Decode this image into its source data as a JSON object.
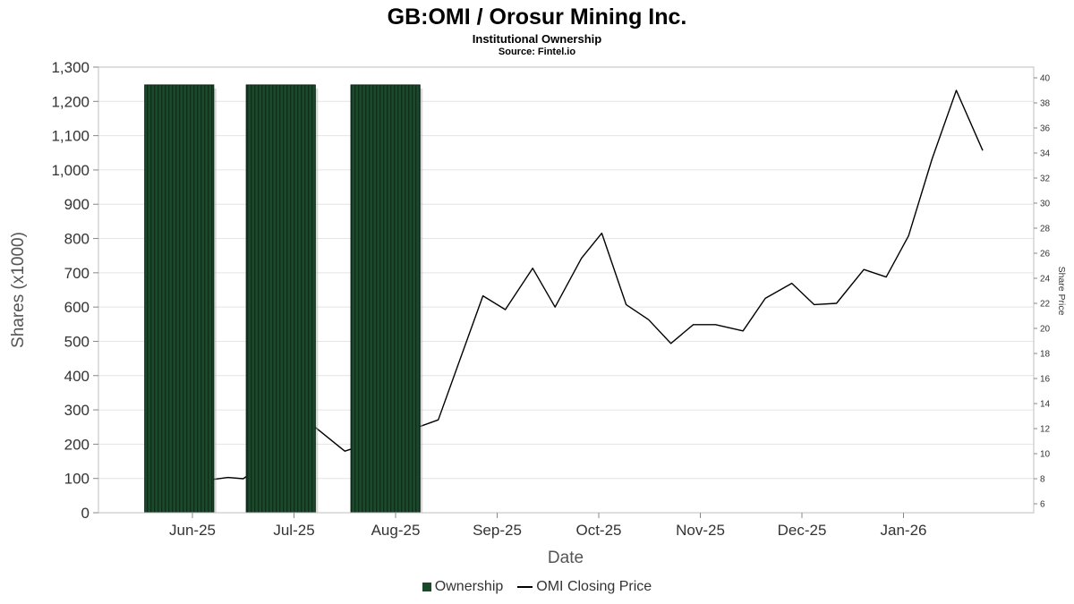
{
  "chart_data": {
    "type": "mixed",
    "title": "GB:OMI / Orosur Mining Inc.",
    "subtitle": "Institutional Ownership",
    "source": "Source: Fintel.io",
    "xlabel": "Date",
    "ylabel_left": "Shares (x1000)",
    "ylabel_right": "Share Price",
    "x_tick_labels": [
      "Jun-25",
      "Jul-25",
      "Aug-25",
      "Sep-25",
      "Oct-25",
      "Nov-25",
      "Dec-25",
      "Jan-26"
    ],
    "left_axis": {
      "min": 0,
      "max": 1300,
      "step": 100
    },
    "right_axis": {
      "min": 6,
      "max": 40,
      "step": 2
    },
    "grid": "horizontal",
    "legend_position": "bottom",
    "colors": {
      "bar_fill": "#1b4a2b",
      "bar_hatch": "#0d2e19",
      "line": "#000000",
      "gridline": "#e4e4e4",
      "plot_border": "#bfbfbf"
    },
    "series": [
      {
        "name": "Ownership",
        "type": "bar",
        "axis": "left",
        "color": "#1b4a2b",
        "bar_width_months": 0.68,
        "points": [
          {
            "month": "Jun-25",
            "t": -0.13,
            "shares_k": 1248
          },
          {
            "month": "Jul-25",
            "t": 0.87,
            "shares_k": 1248
          },
          {
            "month": "Aug-25",
            "t": 1.9,
            "shares_k": 1248
          }
        ]
      },
      {
        "name": "OMI Closing Price",
        "type": "line",
        "axis": "right",
        "color": "#000000",
        "points": [
          [
            0.16,
            7.9
          ],
          [
            0.35,
            8.1
          ],
          [
            0.5,
            8.0
          ],
          [
            1.21,
            12.1
          ],
          [
            1.5,
            10.2
          ],
          [
            2.25,
            12.2
          ],
          [
            2.42,
            12.7
          ],
          [
            2.86,
            22.6
          ],
          [
            3.08,
            21.5
          ],
          [
            3.35,
            24.8
          ],
          [
            3.57,
            21.7
          ],
          [
            3.83,
            25.6
          ],
          [
            4.03,
            27.6
          ],
          [
            4.27,
            21.9
          ],
          [
            4.49,
            20.7
          ],
          [
            4.71,
            18.8
          ],
          [
            4.93,
            20.3
          ],
          [
            5.15,
            20.3
          ],
          [
            5.42,
            19.8
          ],
          [
            5.64,
            22.4
          ],
          [
            5.9,
            23.6
          ],
          [
            6.12,
            21.9
          ],
          [
            6.34,
            22.0
          ],
          [
            6.61,
            24.7
          ],
          [
            6.83,
            24.1
          ],
          [
            7.05,
            27.4
          ],
          [
            7.28,
            33.5
          ],
          [
            7.52,
            39.0
          ],
          [
            7.78,
            34.2
          ]
        ]
      }
    ]
  }
}
